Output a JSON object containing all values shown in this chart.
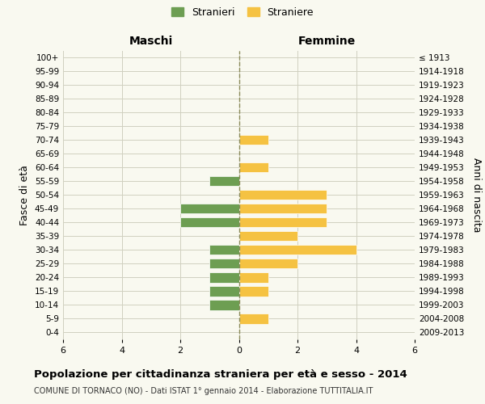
{
  "age_groups": [
    "100+",
    "95-99",
    "90-94",
    "85-89",
    "80-84",
    "75-79",
    "70-74",
    "65-69",
    "60-64",
    "55-59",
    "50-54",
    "45-49",
    "40-44",
    "35-39",
    "30-34",
    "25-29",
    "20-24",
    "15-19",
    "10-14",
    "5-9",
    "0-4"
  ],
  "birth_years": [
    "≤ 1913",
    "1914-1918",
    "1919-1923",
    "1924-1928",
    "1929-1933",
    "1934-1938",
    "1939-1943",
    "1944-1948",
    "1949-1953",
    "1954-1958",
    "1959-1963",
    "1964-1968",
    "1969-1973",
    "1974-1978",
    "1979-1983",
    "1984-1988",
    "1989-1993",
    "1994-1998",
    "1999-2003",
    "2004-2008",
    "2009-2013"
  ],
  "maschi": [
    0,
    0,
    0,
    0,
    0,
    0,
    0,
    0,
    0,
    1,
    0,
    2,
    2,
    0,
    1,
    1,
    1,
    1,
    1,
    0,
    0
  ],
  "femmine": [
    0,
    0,
    0,
    0,
    0,
    0,
    1,
    0,
    1,
    0,
    3,
    3,
    3,
    2,
    4,
    2,
    1,
    1,
    0,
    1,
    0
  ],
  "male_color": "#6d9e52",
  "female_color": "#f5c242",
  "center_line_color": "#8b8b5a",
  "grid_color": "#d0d0c0",
  "background_color": "#f9f9f0",
  "title": "Popolazione per cittadinanza straniera per età e sesso - 2014",
  "subtitle": "COMUNE DI TORNACO (NO) - Dati ISTAT 1° gennaio 2014 - Elaborazione TUTTITALIA.IT",
  "legend_stranieri": "Stranieri",
  "legend_straniere": "Straniere",
  "xlabel_left": "Maschi",
  "xlabel_right": "Femmine",
  "ylabel_left": "Fasce di età",
  "ylabel_right": "Anni di nascita",
  "xlim": 6
}
